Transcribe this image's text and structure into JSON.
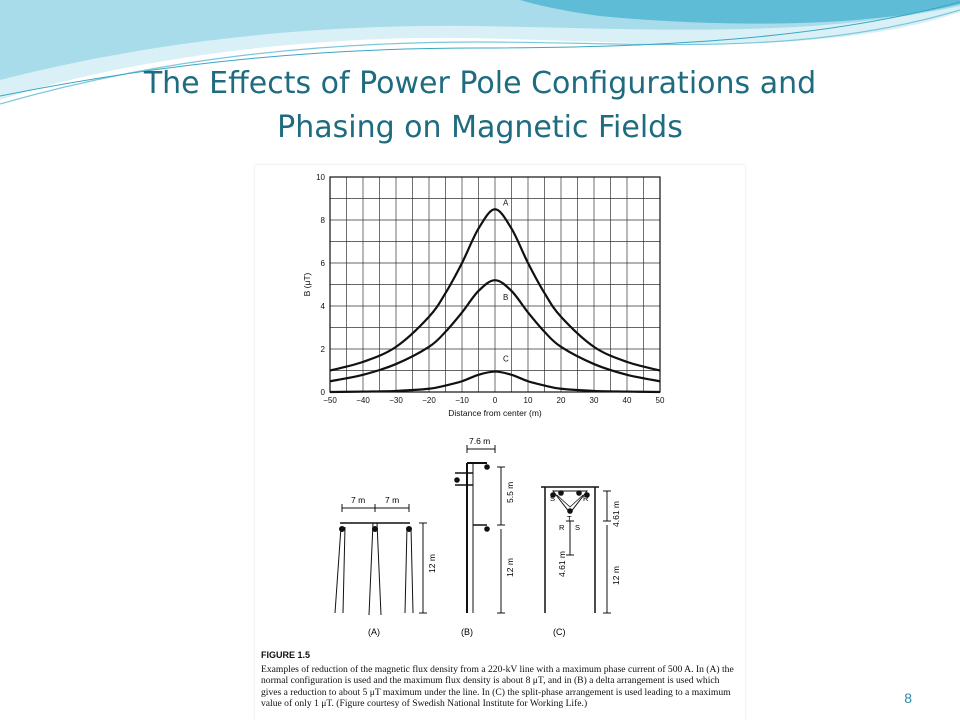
{
  "slide": {
    "title_line1": "The Effects of Power Pole Configurations and",
    "title_line2": "Phasing on Magnetic Fields",
    "page_number": "8",
    "accent_color": "#1f6b80",
    "wave_colors": [
      "#c8e8f0",
      "#7cc6dc",
      "#3aa7c4"
    ]
  },
  "chart_data": {
    "type": "line",
    "title": "",
    "xlabel": "Distance from center (m)",
    "ylabel": "B (μT)",
    "xlim": [
      -50,
      50
    ],
    "ylim": [
      0,
      10
    ],
    "xticks": [
      -50,
      -40,
      -30,
      -20,
      -10,
      0,
      10,
      20,
      30,
      40,
      50
    ],
    "yticks": [
      0,
      2,
      4,
      6,
      8,
      10
    ],
    "xtick_labels": [
      "−50",
      "−40",
      "−30",
      "−20",
      "−10",
      "0",
      "10",
      "20",
      "30",
      "40",
      "50"
    ],
    "grid": true,
    "x": [
      -50,
      -40,
      -30,
      -20,
      -15,
      -10,
      -5,
      0,
      5,
      10,
      15,
      20,
      30,
      40,
      50
    ],
    "series": [
      {
        "name": "A",
        "values": [
          1.0,
          1.4,
          2.1,
          3.5,
          4.6,
          6.0,
          7.6,
          8.5,
          7.6,
          6.0,
          4.6,
          3.5,
          2.1,
          1.4,
          1.0
        ]
      },
      {
        "name": "B",
        "values": [
          0.5,
          0.8,
          1.3,
          2.1,
          2.8,
          3.7,
          4.7,
          5.2,
          4.7,
          3.7,
          2.8,
          2.1,
          1.3,
          0.8,
          0.5
        ]
      },
      {
        "name": "C",
        "values": [
          0.0,
          0.02,
          0.05,
          0.15,
          0.3,
          0.5,
          0.8,
          0.95,
          0.8,
          0.5,
          0.3,
          0.15,
          0.05,
          0.02,
          0.0
        ]
      }
    ]
  },
  "towers": {
    "a": {
      "label": "(A)",
      "spacing_left": "7 m",
      "spacing_right": "7 m",
      "height": "12 m"
    },
    "b": {
      "label": "(B)",
      "top_width": "7.6 m",
      "upper_gap": "5.5 m",
      "height": "12 m"
    },
    "c": {
      "label": "(C)",
      "upper_gap": "4.61 m",
      "lower_gap": "4.61 m",
      "height": "12 m",
      "phase_letters": [
        "S",
        "R",
        "T",
        "R",
        "S"
      ]
    }
  },
  "caption": {
    "heading": "FIGURE 1.5",
    "text": "Examples of reduction of the magnetic flux density from a 220-kV line with a maximum phase current of 500 A. In (A) the normal configuration is used and the maximum flux density is about 8 μT, and in (B) a delta arrangement is used which gives a reduction to about 5 μT maximum under the line. In (C) the split-phase arrangement is used leading to a maximum value of only 1 μT. (Figure courtesy of Swedish National Institute for Working Life.)"
  }
}
